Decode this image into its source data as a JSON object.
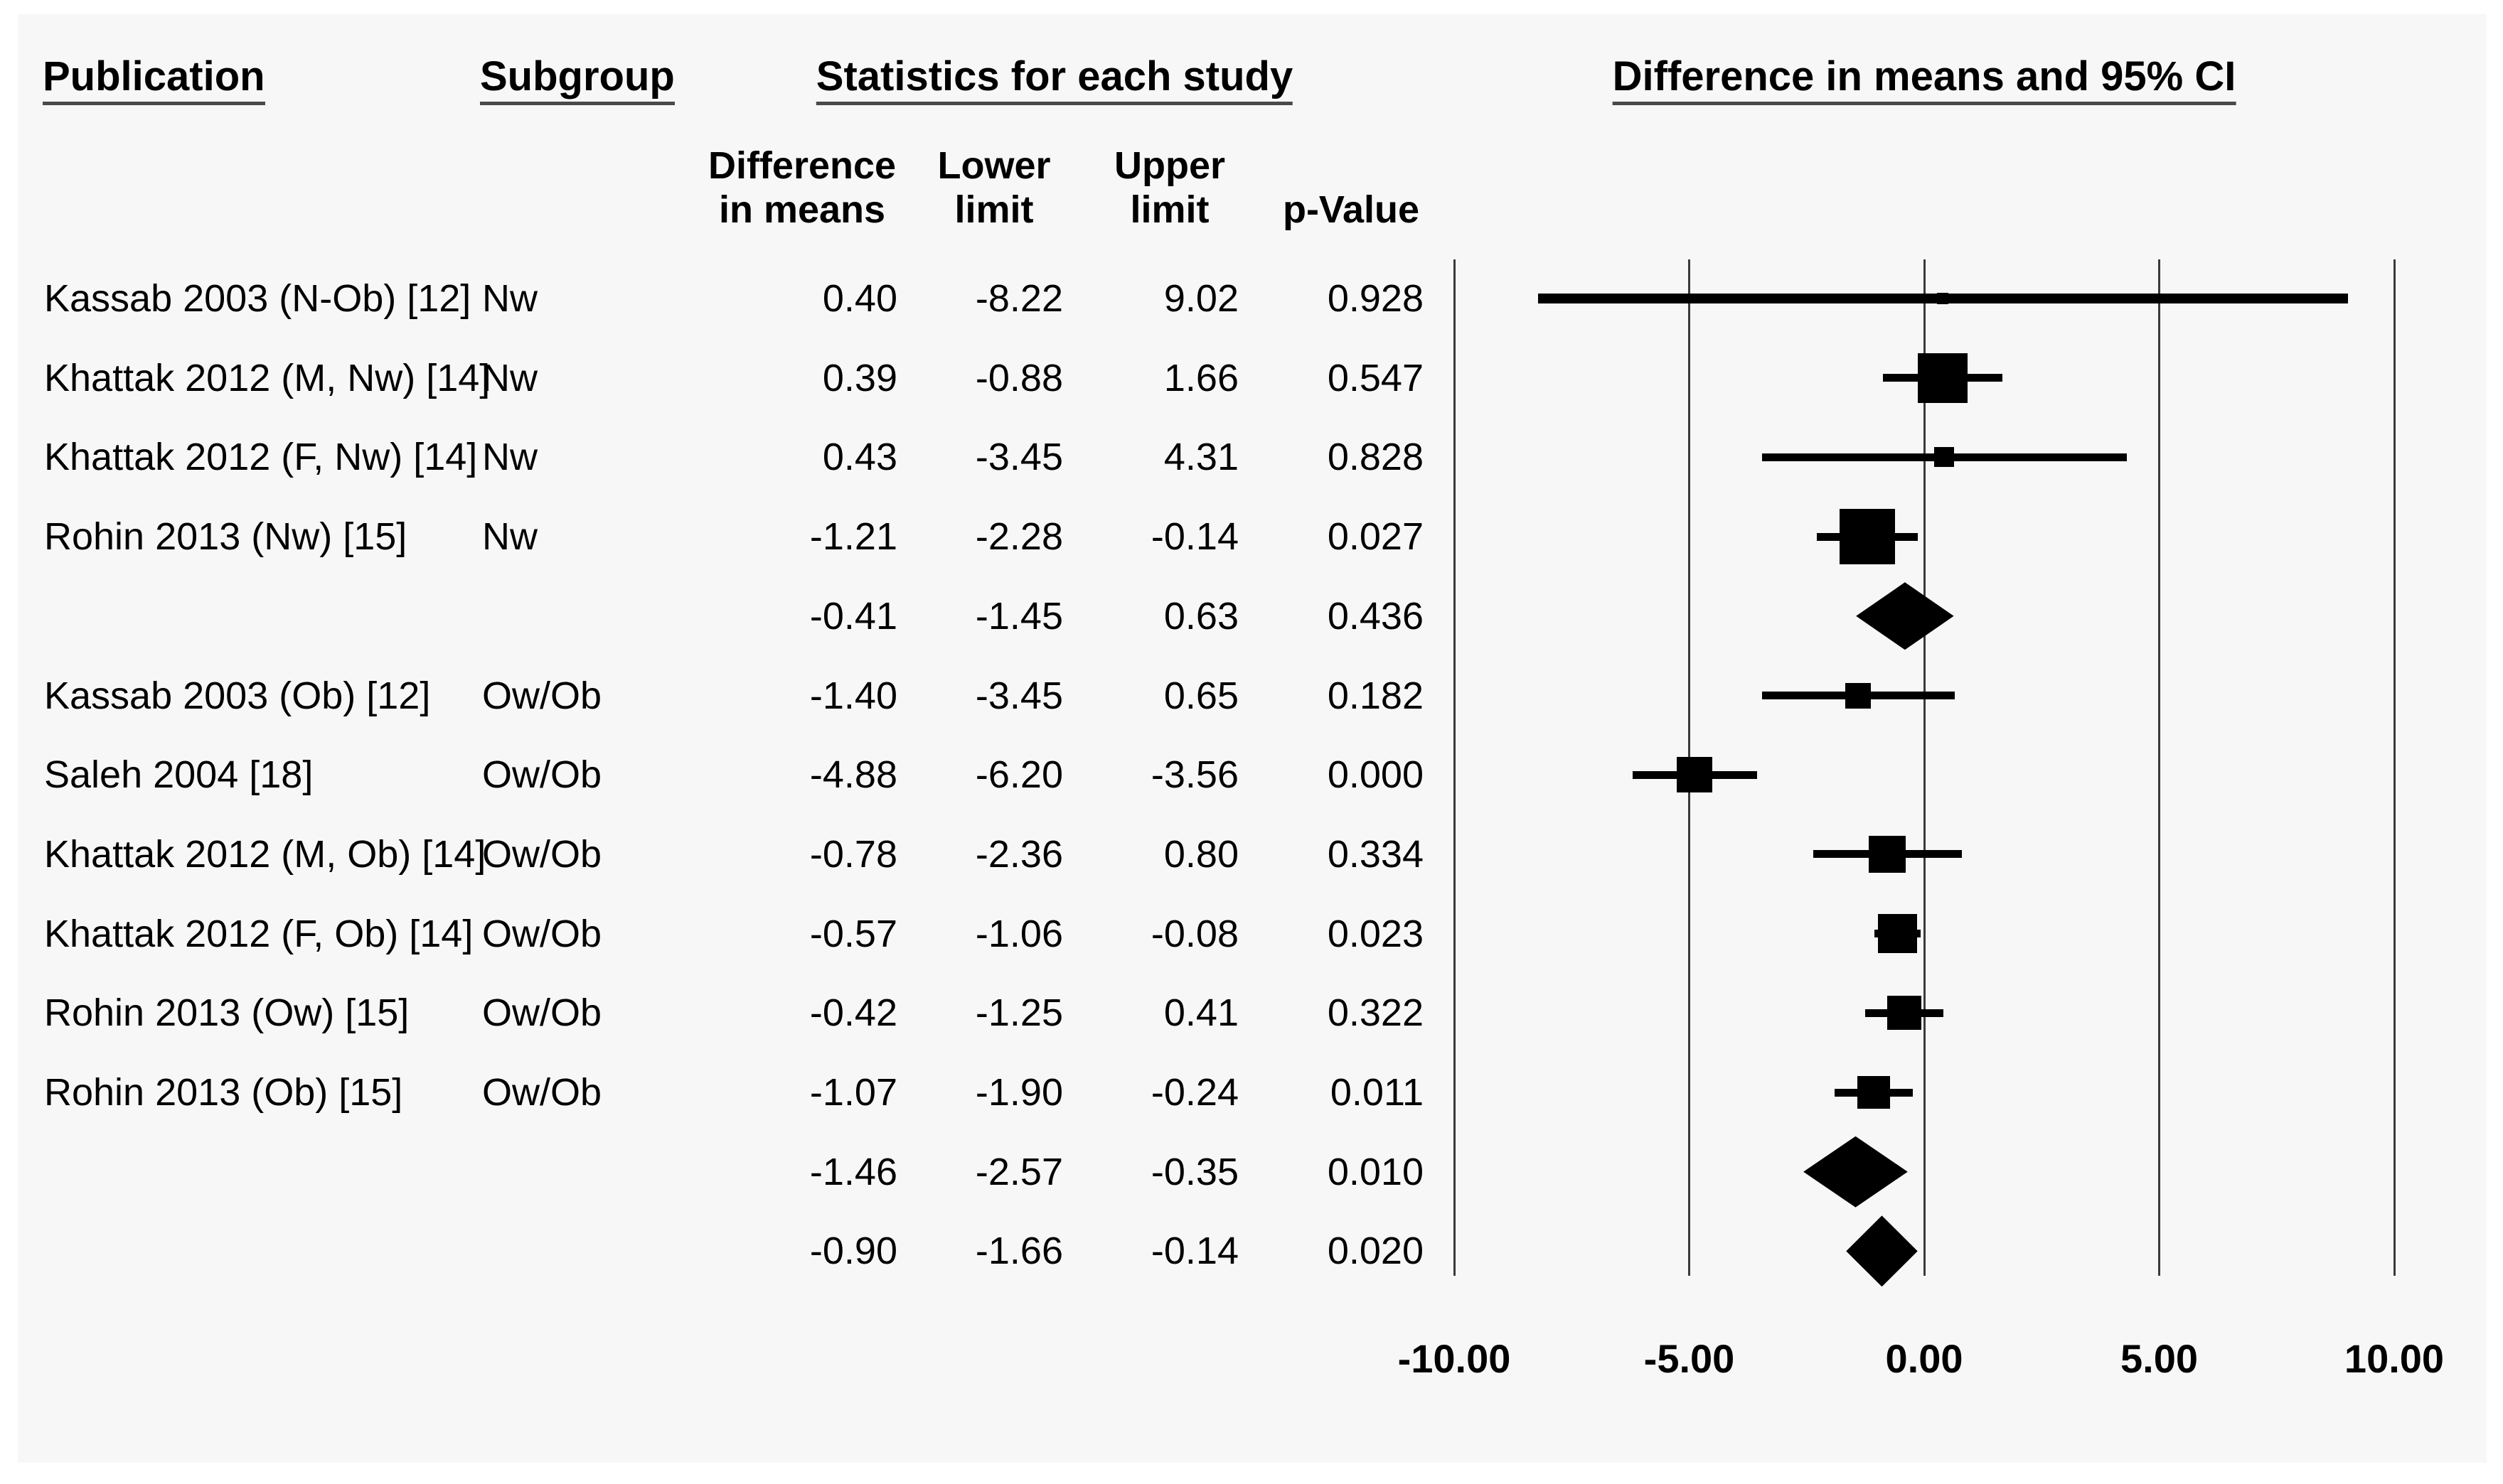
{
  "figure": {
    "headers": {
      "publication": "Publication",
      "subgroup": "Subgroup",
      "statistics": "Statistics for each study",
      "plot": "Difference in means and 95% CI"
    },
    "columns": {
      "diff": "Difference\nin means",
      "lower": "Lower\nlimit",
      "upper": "Upper\nlimit",
      "pvalue": "p-Value"
    }
  },
  "chart_data": {
    "type": "forest",
    "title": "Difference in means and 95% CI",
    "x_axis": {
      "tick_labels": [
        "-10.00",
        "-5.00",
        "0.00",
        "5.00",
        "10.00"
      ],
      "tick_values": [
        -10,
        -5,
        0,
        5,
        10
      ],
      "xlim": [
        -10,
        10
      ],
      "gridlines": true
    },
    "groups": [
      "Nw",
      "Ow/Ob"
    ],
    "rows": [
      {
        "publication": "Kassab 2003 (N-Ob) [12]",
        "subgroup": "Nw",
        "diff_in_means": "0.40",
        "lower_limit": "-8.22",
        "upper_limit": "9.02",
        "p_value": "0.928",
        "row_type": "study",
        "marker": "square",
        "marker_px": 16
      },
      {
        "publication": "Khattak 2012 (M, Nw) [14]",
        "subgroup": "Nw",
        "diff_in_means": "0.39",
        "lower_limit": "-0.88",
        "upper_limit": "1.66",
        "p_value": "0.547",
        "row_type": "study",
        "marker": "square",
        "marker_px": 70
      },
      {
        "publication": "Khattak 2012 (F, Nw) [14]",
        "subgroup": "Nw",
        "diff_in_means": "0.43",
        "lower_limit": "-3.45",
        "upper_limit": "4.31",
        "p_value": "0.828",
        "row_type": "study",
        "marker": "square",
        "marker_px": 28
      },
      {
        "publication": "Rohin 2013 (Nw) [15]",
        "subgroup": "Nw",
        "diff_in_means": "-1.21",
        "lower_limit": "-2.28",
        "upper_limit": "-0.14",
        "p_value": "0.027",
        "row_type": "study",
        "marker": "square",
        "marker_px": 78
      },
      {
        "publication": "",
        "subgroup": "",
        "diff_in_means": "-0.41",
        "lower_limit": "-1.45",
        "upper_limit": "0.63",
        "p_value": "0.436",
        "row_type": "subtotal",
        "marker": "diamond",
        "marker_px": 95
      },
      {
        "publication": "Kassab 2003 (Ob) [12]",
        "subgroup": "Ow/Ob",
        "diff_in_means": "-1.40",
        "lower_limit": "-3.45",
        "upper_limit": "0.65",
        "p_value": "0.182",
        "row_type": "study",
        "marker": "square",
        "marker_px": 36
      },
      {
        "publication": "Saleh 2004 [18]",
        "subgroup": "Ow/Ob",
        "diff_in_means": "-4.88",
        "lower_limit": "-6.20",
        "upper_limit": "-3.56",
        "p_value": "0.000",
        "row_type": "study",
        "marker": "square",
        "marker_px": 50
      },
      {
        "publication": "Khattak 2012 (M, Ob) [14]",
        "subgroup": "Ow/Ob",
        "diff_in_means": "-0.78",
        "lower_limit": "-2.36",
        "upper_limit": "0.80",
        "p_value": "0.334",
        "row_type": "study",
        "marker": "square",
        "marker_px": 52
      },
      {
        "publication": "Khattak 2012 (F, Ob) [14]",
        "subgroup": "Ow/Ob",
        "diff_in_means": "-0.57",
        "lower_limit": "-1.06",
        "upper_limit": "-0.08",
        "p_value": "0.023",
        "row_type": "study",
        "marker": "square",
        "marker_px": 55
      },
      {
        "publication": "Rohin 2013 (Ow) [15]",
        "subgroup": "Ow/Ob",
        "diff_in_means": "-0.42",
        "lower_limit": "-1.25",
        "upper_limit": "0.41",
        "p_value": "0.322",
        "row_type": "study",
        "marker": "square",
        "marker_px": 48
      },
      {
        "publication": "Rohin 2013 (Ob) [15]",
        "subgroup": "Ow/Ob",
        "diff_in_means": "-1.07",
        "lower_limit": "-1.90",
        "upper_limit": "-0.24",
        "p_value": "0.011",
        "row_type": "study",
        "marker": "square",
        "marker_px": 46
      },
      {
        "publication": "",
        "subgroup": "",
        "diff_in_means": "-1.46",
        "lower_limit": "-2.57",
        "upper_limit": "-0.35",
        "p_value": "0.010",
        "row_type": "subtotal",
        "marker": "diamond",
        "marker_px": 100
      },
      {
        "publication": "",
        "subgroup": "",
        "diff_in_means": "-0.90",
        "lower_limit": "-1.66",
        "upper_limit": "-0.14",
        "p_value": "0.020",
        "row_type": "total",
        "marker": "diamond",
        "marker_px": 100
      }
    ],
    "colors": {
      "marker": "#000000",
      "ci_line": "#000000",
      "gridline": "#3a3a3a",
      "underline": "#4a4a4a",
      "background": "#f7f7f7",
      "text": "#000000"
    }
  }
}
